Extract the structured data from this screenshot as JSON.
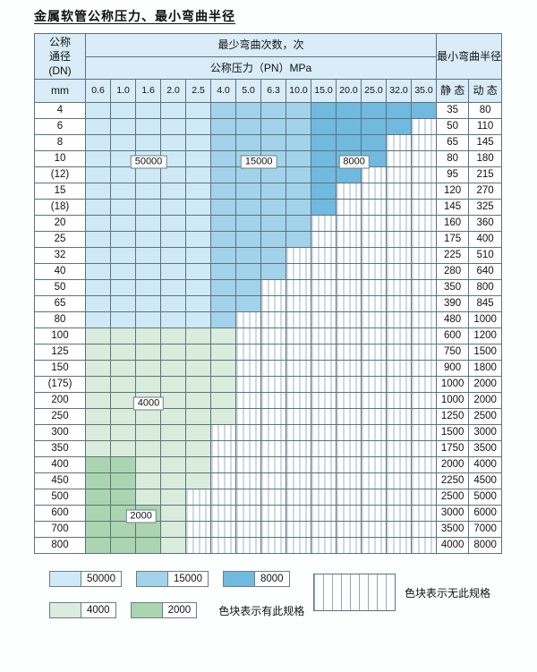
{
  "title": "金属软管公称压力、最小弯曲半径",
  "header": {
    "dn_line1": "公称",
    "dn_line2": "通径",
    "dn_line3": "(DN)",
    "dn_unit": "mm",
    "bend_cycles": "最少弯曲次数，次",
    "pressure": "公称压力（PN）MPa",
    "radius": "最小弯曲半径",
    "static": "静 态",
    "dynamic": "动 态"
  },
  "colors": {
    "c50000": "#cfe9f7",
    "c15000": "#a3d3ea",
    "c8000": "#6fbade",
    "c4000": "#daecdb",
    "c2000": "#abd5b0",
    "border": "#5c7280"
  },
  "chart_data": {
    "type": "heatmap",
    "title": "金属软管公称压力、最小弯曲半径",
    "x_label": "公称压力（PN）MPa",
    "y_label": "公称通径 (DN) mm",
    "value_label": "最少弯曲次数，次",
    "pressures_pn_mpa": [
      "0.6",
      "1.0",
      "1.6",
      "2.0",
      "2.5",
      "4.0",
      "5.0",
      "6.3",
      "10.0",
      "15.0",
      "20.0",
      "25.0",
      "32.0",
      "35.0"
    ],
    "cycle_levels": [
      50000,
      15000,
      8000,
      4000,
      2000
    ],
    "rows": [
      {
        "dn": "4",
        "static": "35",
        "dynamic": "80",
        "spans": [
          [
            50000,
            5
          ],
          [
            15000,
            4
          ],
          [
            8000,
            5
          ]
        ]
      },
      {
        "dn": "6",
        "static": "50",
        "dynamic": "110",
        "spans": [
          [
            50000,
            5
          ],
          [
            15000,
            4
          ],
          [
            8000,
            4
          ]
        ]
      },
      {
        "dn": "8",
        "static": "65",
        "dynamic": "145",
        "spans": [
          [
            50000,
            5
          ],
          [
            15000,
            4
          ],
          [
            8000,
            3
          ]
        ]
      },
      {
        "dn": "10",
        "static": "80",
        "dynamic": "180",
        "spans": [
          [
            50000,
            5
          ],
          [
            15000,
            4
          ],
          [
            8000,
            3
          ]
        ]
      },
      {
        "dn": "(12)",
        "static": "95",
        "dynamic": "215",
        "spans": [
          [
            50000,
            5
          ],
          [
            15000,
            4
          ],
          [
            8000,
            2
          ]
        ]
      },
      {
        "dn": "15",
        "static": "120",
        "dynamic": "270",
        "spans": [
          [
            50000,
            5
          ],
          [
            15000,
            4
          ],
          [
            8000,
            1
          ]
        ]
      },
      {
        "dn": "(18)",
        "static": "145",
        "dynamic": "325",
        "spans": [
          [
            50000,
            5
          ],
          [
            15000,
            4
          ],
          [
            8000,
            1
          ]
        ]
      },
      {
        "dn": "20",
        "static": "160",
        "dynamic": "360",
        "spans": [
          [
            50000,
            5
          ],
          [
            15000,
            4
          ]
        ]
      },
      {
        "dn": "25",
        "static": "175",
        "dynamic": "400",
        "spans": [
          [
            50000,
            5
          ],
          [
            15000,
            4
          ]
        ]
      },
      {
        "dn": "32",
        "static": "225",
        "dynamic": "510",
        "spans": [
          [
            50000,
            5
          ],
          [
            15000,
            3
          ]
        ]
      },
      {
        "dn": "40",
        "static": "280",
        "dynamic": "640",
        "spans": [
          [
            50000,
            5
          ],
          [
            15000,
            3
          ]
        ]
      },
      {
        "dn": "50",
        "static": "350",
        "dynamic": "800",
        "spans": [
          [
            50000,
            5
          ],
          [
            15000,
            2
          ]
        ]
      },
      {
        "dn": "65",
        "static": "390",
        "dynamic": "845",
        "spans": [
          [
            50000,
            5
          ],
          [
            15000,
            2
          ]
        ]
      },
      {
        "dn": "80",
        "static": "480",
        "dynamic": "1000",
        "spans": [
          [
            50000,
            5
          ],
          [
            15000,
            1
          ]
        ]
      },
      {
        "dn": "100",
        "static": "600",
        "dynamic": "1200",
        "spans": [
          [
            4000,
            6
          ]
        ]
      },
      {
        "dn": "125",
        "static": "750",
        "dynamic": "1500",
        "spans": [
          [
            4000,
            6
          ]
        ]
      },
      {
        "dn": "150",
        "static": "900",
        "dynamic": "1800",
        "spans": [
          [
            4000,
            6
          ]
        ]
      },
      {
        "dn": "(175)",
        "static": "1000",
        "dynamic": "2000",
        "spans": [
          [
            4000,
            6
          ]
        ]
      },
      {
        "dn": "200",
        "static": "1000",
        "dynamic": "2000",
        "spans": [
          [
            4000,
            6
          ]
        ]
      },
      {
        "dn": "250",
        "static": "1250",
        "dynamic": "2500",
        "spans": [
          [
            4000,
            6
          ]
        ]
      },
      {
        "dn": "300",
        "static": "1500",
        "dynamic": "3000",
        "spans": [
          [
            4000,
            5
          ]
        ]
      },
      {
        "dn": "350",
        "static": "1750",
        "dynamic": "3500",
        "spans": [
          [
            4000,
            5
          ]
        ]
      },
      {
        "dn": "400",
        "static": "2000",
        "dynamic": "4000",
        "spans": [
          [
            2000,
            2
          ],
          [
            4000,
            3
          ]
        ]
      },
      {
        "dn": "450",
        "static": "2250",
        "dynamic": "4500",
        "spans": [
          [
            2000,
            2
          ],
          [
            4000,
            3
          ]
        ]
      },
      {
        "dn": "500",
        "static": "2500",
        "dynamic": "5000",
        "spans": [
          [
            2000,
            2
          ],
          [
            4000,
            2
          ]
        ]
      },
      {
        "dn": "600",
        "static": "3000",
        "dynamic": "6000",
        "spans": [
          [
            2000,
            3
          ],
          [
            4000,
            1
          ]
        ]
      },
      {
        "dn": "700",
        "static": "3500",
        "dynamic": "7000",
        "spans": [
          [
            2000,
            3
          ],
          [
            4000,
            1
          ]
        ]
      },
      {
        "dn": "800",
        "static": "4000",
        "dynamic": "8000",
        "spans": [
          [
            2000,
            3
          ],
          [
            4000,
            1
          ]
        ]
      }
    ],
    "inline_labels": [
      {
        "text": "50000",
        "row": 3,
        "col": 2.5
      },
      {
        "text": "15000",
        "row": 3,
        "col": 6.9
      },
      {
        "text": "8000",
        "row": 3,
        "col": 10.7
      },
      {
        "text": "4000",
        "row": 18,
        "col": 2.5
      },
      {
        "text": "2000",
        "row": 25,
        "col": 2.2
      }
    ]
  },
  "legend": {
    "blue_items": [
      {
        "label": "50000",
        "color": "c50000"
      },
      {
        "label": "15000",
        "color": "c15000"
      },
      {
        "label": "8000",
        "color": "c8000"
      }
    ],
    "green_items": [
      {
        "label": "4000",
        "color": "c4000"
      },
      {
        "label": "2000",
        "color": "c2000"
      }
    ],
    "has_spec_text": "色块表示有此规格",
    "no_spec_text": "色块表示无此规格"
  }
}
